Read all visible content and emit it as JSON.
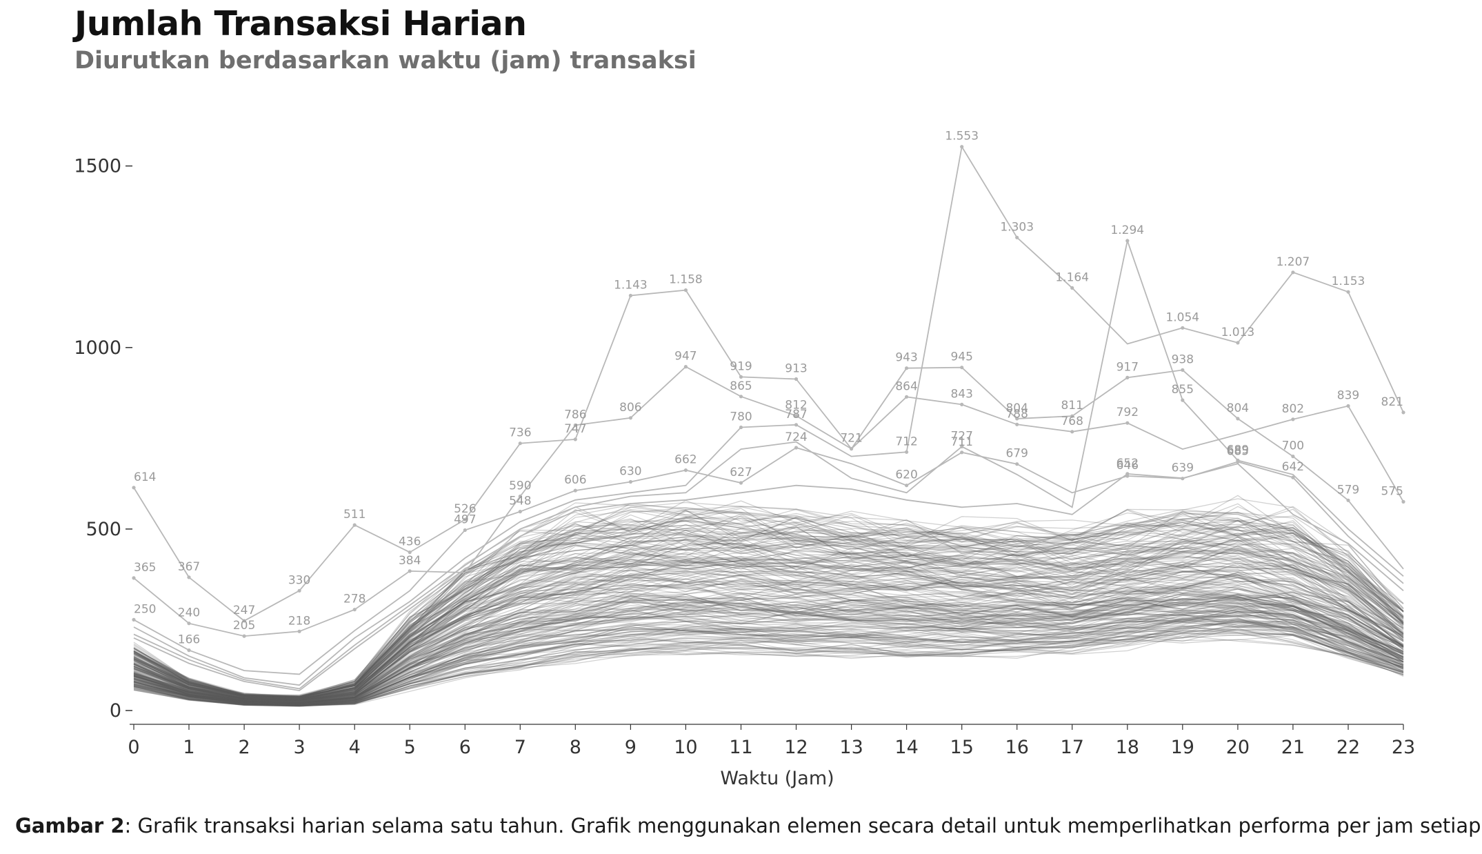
{
  "title": "Jumlah Transaksi Harian",
  "subtitle": "Diurutkan berdasarkan waktu (jam) transaksi",
  "caption": {
    "label": "Gambar 2",
    "text": ": Grafik transaksi harian selama satu tahun. Grafik menggunakan elemen secara detail untuk memperlihatkan performa per jam setiap hari."
  },
  "colors": {
    "line_dense": "#5a5a5a",
    "line_light": "#b8b8b8",
    "annotation": "#9a9a9a",
    "axis": "#333333"
  },
  "chart_data": {
    "type": "line",
    "title": "Jumlah Transaksi Harian",
    "subtitle": "Diurutkan berdasarkan waktu (jam) transaksi",
    "xlabel": "Waktu (Jam)",
    "ylabel": "",
    "x": [
      0,
      1,
      2,
      3,
      4,
      5,
      6,
      7,
      8,
      9,
      10,
      11,
      12,
      13,
      14,
      15,
      16,
      17,
      18,
      19,
      20,
      21,
      22,
      23
    ],
    "x_tick_labels": [
      "0",
      "1",
      "2",
      "3",
      "4",
      "5",
      "6",
      "7",
      "8",
      "9",
      "10",
      "11",
      "12",
      "13",
      "14",
      "15",
      "16",
      "17",
      "18",
      "19",
      "20",
      "21",
      "22",
      "23"
    ],
    "ylim": [
      0,
      1600
    ],
    "y_ticks": [
      0,
      500,
      1000,
      1500
    ],
    "y_tick_labels": [
      "0",
      "500",
      "1000",
      "1500"
    ],
    "grid": false,
    "legend": "none",
    "note": "Around 365 daily lines (one per day of the year) drawn in overlapping grey; the dense band ranges roughly as given in band_low / band_mid / band_high.",
    "band": {
      "low": [
        60,
        30,
        15,
        12,
        18,
        60,
        95,
        115,
        140,
        155,
        160,
        160,
        155,
        155,
        150,
        150,
        155,
        165,
        185,
        200,
        210,
        195,
        150,
        100
      ],
      "mid": [
        110,
        55,
        30,
        25,
        45,
        160,
        240,
        300,
        330,
        350,
        355,
        350,
        345,
        340,
        335,
        325,
        320,
        310,
        330,
        340,
        345,
        320,
        260,
        170
      ],
      "high": [
        170,
        85,
        45,
        40,
        80,
        250,
        380,
        470,
        520,
        540,
        550,
        545,
        530,
        520,
        510,
        500,
        495,
        490,
        520,
        540,
        555,
        520,
        430,
        280
      ]
    },
    "series": [
      {
        "values": [
          614,
          367,
          247,
          330,
          511,
          436,
          526,
          736,
          747,
          1143,
          1158,
          919,
          913,
          721,
          943,
          945,
          804,
          811,
          917,
          938,
          804,
          700,
          579,
          390
        ]
      },
      {
        "values": [
          365,
          240,
          205,
          218,
          278,
          384,
          380,
          590,
          786,
          806,
          947,
          865,
          812,
          721,
          864,
          843,
          788,
          768,
          792,
          720,
          760,
          802,
          839,
          575
        ]
      },
      {
        "values": [
          250,
          166,
          110,
          100,
          220,
          330,
          497,
          548,
          606,
          630,
          662,
          627,
          724,
          680,
          620,
          711,
          679,
          600,
          646,
          639,
          685,
          642,
          480,
          350
        ]
      },
      {
        "values": [
          230,
          150,
          90,
          70,
          200,
          300,
          420,
          520,
          580,
          600,
          620,
          780,
          787,
          700,
          712,
          1553,
          1303,
          1164,
          1010,
          1054,
          1013,
          1207,
          1153,
          821
        ]
      },
      {
        "values": [
          210,
          140,
          85,
          60,
          180,
          290,
          400,
          500,
          560,
          590,
          600,
          720,
          740,
          640,
          600,
          727,
          650,
          560,
          1294,
          855,
          689,
          650,
          500,
          370
        ]
      },
      {
        "values": [
          200,
          130,
          80,
          55,
          170,
          280,
          390,
          480,
          550,
          570,
          580,
          600,
          620,
          610,
          580,
          560,
          570,
          540,
          652,
          640,
          680,
          540,
          460,
          330
        ]
      }
    ],
    "data_labels": [
      {
        "x": 0,
        "y": 614,
        "text": "614"
      },
      {
        "x": 0,
        "y": 365,
        "text": "365"
      },
      {
        "x": 0,
        "y": 250,
        "text": "250"
      },
      {
        "x": 1,
        "y": 367,
        "text": "367"
      },
      {
        "x": 1,
        "y": 240,
        "text": "240"
      },
      {
        "x": 1,
        "y": 166,
        "text": "166"
      },
      {
        "x": 2,
        "y": 247,
        "text": "247"
      },
      {
        "x": 2,
        "y": 205,
        "text": "205"
      },
      {
        "x": 3,
        "y": 330,
        "text": "330"
      },
      {
        "x": 3,
        "y": 218,
        "text": "218"
      },
      {
        "x": 4,
        "y": 511,
        "text": "511"
      },
      {
        "x": 4,
        "y": 278,
        "text": "278"
      },
      {
        "x": 5,
        "y": 436,
        "text": "436"
      },
      {
        "x": 5,
        "y": 384,
        "text": "384"
      },
      {
        "x": 6,
        "y": 526,
        "text": "526"
      },
      {
        "x": 6,
        "y": 497,
        "text": "497"
      },
      {
        "x": 7,
        "y": 736,
        "text": "736"
      },
      {
        "x": 7,
        "y": 590,
        "text": "590"
      },
      {
        "x": 7,
        "y": 548,
        "text": "548"
      },
      {
        "x": 8,
        "y": 786,
        "text": "786"
      },
      {
        "x": 8,
        "y": 747,
        "text": "747"
      },
      {
        "x": 8,
        "y": 606,
        "text": "606"
      },
      {
        "x": 9,
        "y": 1143,
        "text": "1.143"
      },
      {
        "x": 9,
        "y": 806,
        "text": "806"
      },
      {
        "x": 9,
        "y": 630,
        "text": "630"
      },
      {
        "x": 10,
        "y": 1158,
        "text": "1.158"
      },
      {
        "x": 10,
        "y": 947,
        "text": "947"
      },
      {
        "x": 10,
        "y": 662,
        "text": "662"
      },
      {
        "x": 11,
        "y": 919,
        "text": "919"
      },
      {
        "x": 11,
        "y": 865,
        "text": "865"
      },
      {
        "x": 11,
        "y": 780,
        "text": "780"
      },
      {
        "x": 11,
        "y": 627,
        "text": "627"
      },
      {
        "x": 12,
        "y": 913,
        "text": "913"
      },
      {
        "x": 12,
        "y": 812,
        "text": "812"
      },
      {
        "x": 12,
        "y": 787,
        "text": "787"
      },
      {
        "x": 12,
        "y": 724,
        "text": "724"
      },
      {
        "x": 13,
        "y": 721,
        "text": "721"
      },
      {
        "x": 14,
        "y": 943,
        "text": "943"
      },
      {
        "x": 14,
        "y": 864,
        "text": "864"
      },
      {
        "x": 14,
        "y": 712,
        "text": "712"
      },
      {
        "x": 14,
        "y": 620,
        "text": "620"
      },
      {
        "x": 15,
        "y": 1553,
        "text": "1.553"
      },
      {
        "x": 15,
        "y": 945,
        "text": "945"
      },
      {
        "x": 15,
        "y": 843,
        "text": "843"
      },
      {
        "x": 15,
        "y": 727,
        "text": "727"
      },
      {
        "x": 15,
        "y": 711,
        "text": "711"
      },
      {
        "x": 16,
        "y": 1303,
        "text": "1.303"
      },
      {
        "x": 16,
        "y": 804,
        "text": "804"
      },
      {
        "x": 16,
        "y": 788,
        "text": "788"
      },
      {
        "x": 16,
        "y": 679,
        "text": "679"
      },
      {
        "x": 17,
        "y": 1164,
        "text": "1.164"
      },
      {
        "x": 17,
        "y": 811,
        "text": "811"
      },
      {
        "x": 17,
        "y": 768,
        "text": "768"
      },
      {
        "x": 18,
        "y": 1294,
        "text": "1.294"
      },
      {
        "x": 18,
        "y": 917,
        "text": "917"
      },
      {
        "x": 18,
        "y": 792,
        "text": "792"
      },
      {
        "x": 18,
        "y": 652,
        "text": "652"
      },
      {
        "x": 18,
        "y": 646,
        "text": "646"
      },
      {
        "x": 19,
        "y": 1054,
        "text": "1.054"
      },
      {
        "x": 19,
        "y": 938,
        "text": "938"
      },
      {
        "x": 19,
        "y": 855,
        "text": "855"
      },
      {
        "x": 19,
        "y": 639,
        "text": "639"
      },
      {
        "x": 20,
        "y": 1013,
        "text": "1.013"
      },
      {
        "x": 20,
        "y": 804,
        "text": "804"
      },
      {
        "x": 20,
        "y": 689,
        "text": "689"
      },
      {
        "x": 20,
        "y": 685,
        "text": "685"
      },
      {
        "x": 21,
        "y": 1207,
        "text": "1.207"
      },
      {
        "x": 21,
        "y": 802,
        "text": "802"
      },
      {
        "x": 21,
        "y": 700,
        "text": "700"
      },
      {
        "x": 21,
        "y": 642,
        "text": "642"
      },
      {
        "x": 22,
        "y": 1153,
        "text": "1.153"
      },
      {
        "x": 22,
        "y": 839,
        "text": "839"
      },
      {
        "x": 22,
        "y": 579,
        "text": "579"
      },
      {
        "x": 23,
        "y": 821,
        "text": "821"
      },
      {
        "x": 23,
        "y": 575,
        "text": "575"
      }
    ]
  }
}
